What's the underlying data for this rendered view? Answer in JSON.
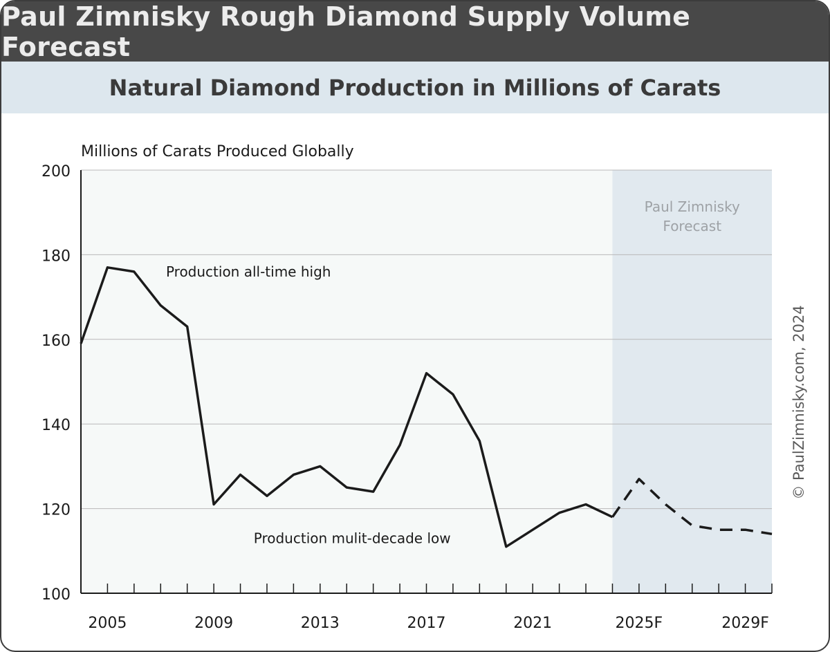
{
  "header": {
    "title": "Paul Zimnisky Rough Diamond Supply Volume Forecast",
    "subtitle": "Natural Diamond Production in Millions of Carats"
  },
  "chart_data": {
    "type": "line",
    "ylabel": "Millions of Carats Produced Globally",
    "ylim": [
      100,
      200
    ],
    "yticks": [
      100,
      120,
      140,
      160,
      180,
      200
    ],
    "xlim": [
      2004,
      2030
    ],
    "xticks": [
      {
        "x": 2005,
        "label": "2005"
      },
      {
        "x": 2009,
        "label": "2009"
      },
      {
        "x": 2013,
        "label": "2013"
      },
      {
        "x": 2017,
        "label": "2017"
      },
      {
        "x": 2021,
        "label": "2021"
      },
      {
        "x": 2025,
        "label": "2025F"
      },
      {
        "x": 2029,
        "label": "2029F"
      }
    ],
    "grid": true,
    "forecast_region": {
      "from": 2024,
      "to": 2030,
      "label_line1": "Paul Zimnisky",
      "label_line2": "Forecast"
    },
    "series": [
      {
        "style": "solid",
        "x": [
          2004,
          2005,
          2006,
          2007,
          2008,
          2009,
          2010,
          2011,
          2012,
          2013,
          2014,
          2015,
          2016,
          2017,
          2018,
          2019,
          2020,
          2021,
          2022,
          2023,
          2024
        ],
        "y": [
          159,
          177,
          176,
          168,
          163,
          121,
          128,
          123,
          128,
          130,
          125,
          124,
          135,
          152,
          147,
          136,
          111,
          115,
          119,
          121,
          118
        ]
      },
      {
        "style": "dashed",
        "x": [
          2024,
          2025,
          2026,
          2027,
          2028,
          2029,
          2030
        ],
        "y": [
          118,
          127,
          121,
          116,
          115,
          115,
          114
        ]
      }
    ],
    "annotations": [
      {
        "text": "Production all-time high",
        "x": 2007.2,
        "y": 176
      },
      {
        "text": "Production mulit-decade low",
        "x": 2010.5,
        "y": 113
      }
    ],
    "colors": {
      "plot_bg": "#f6f9f8",
      "forecast_bg": "#e1e9ef",
      "grid": "#b8b8b8",
      "line": "#1b1b1b",
      "forecast_text": "#9ea2a6"
    }
  },
  "footer": {
    "copyright": "© PaulZimnisky.com, 2024"
  }
}
